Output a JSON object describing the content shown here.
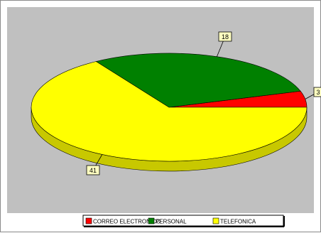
{
  "chart_data": {
    "type": "pie",
    "style": "3d",
    "categories": [
      "CORREO ELECTRONICO",
      "PERSONAL",
      "TELEFONICA"
    ],
    "values": [
      3,
      18,
      41
    ],
    "colors": [
      "#ff0000",
      "#008000",
      "#ffff00"
    ],
    "colors_side": [
      "#b30000",
      "#006000",
      "#c8c800"
    ],
    "background": "#c0c0c0",
    "legend_position": "bottom",
    "title": "",
    "data_labels": [
      "3",
      "18",
      "41"
    ]
  }
}
